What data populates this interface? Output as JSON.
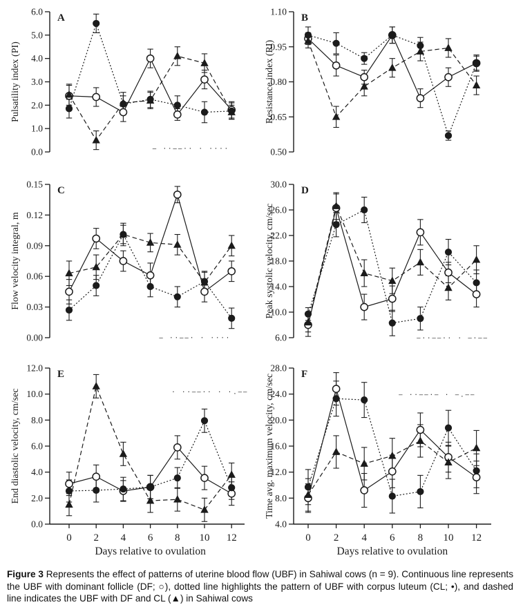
{
  "colors": {
    "ink": "#1b1b1b",
    "background": "#ffffff"
  },
  "figure": {
    "caption_label": "Figure 3",
    "caption_text": " Represents the effect of patterns of uterine blood flow (UBF) in Sahiwal cows (n = 9). Continuous line represents the UBF with dominant follicle (DF; ○), dotted line highlights the pattern of UBF with corpus luteum (CL; •), and dashed line indicates the UBF with DF and CL (▲) in Sahiwal cows"
  },
  "x_axis": {
    "title": "Days relative to ovulation",
    "ticks": [
      0,
      2,
      4,
      6,
      8,
      10,
      12
    ]
  },
  "series_key": [
    {
      "name": "DF",
      "symbol": "○",
      "marker": "open-circle",
      "line": "continuous",
      "meaning": "dominant follicle"
    },
    {
      "name": "CL",
      "symbol": "•",
      "marker": "filled-circle",
      "line": "dotted",
      "meaning": "corpus luteum"
    },
    {
      "name": "DF and CL",
      "symbol": "▲",
      "marker": "filled-triangle",
      "line": "dashed",
      "meaning": "DF and CL"
    }
  ],
  "chart_data": [
    {
      "type": "line",
      "panel": "A",
      "ylabel": "Pulsatility index (PI)",
      "ylim": [
        0.0,
        6.0
      ],
      "ytick_step": 1.0,
      "ydecimals": 1,
      "x": [
        0,
        2,
        4,
        6,
        8,
        10,
        12
      ],
      "series": [
        {
          "name": "DF",
          "values": [
            2.4,
            2.35,
            1.7,
            4.0,
            1.6,
            3.1,
            1.8
          ],
          "err": [
            0.45,
            0.4,
            0.4,
            0.4,
            0.25,
            0.4,
            0.35
          ]
        },
        {
          "name": "CL",
          "values": [
            1.85,
            5.5,
            2.05,
            2.25,
            2.0,
            1.7,
            1.75
          ],
          "err": [
            0.4,
            0.4,
            0.35,
            0.35,
            0.4,
            0.45,
            0.35
          ]
        },
        {
          "name": "DF and CL",
          "values": [
            2.45,
            0.5,
            2.1,
            2.2,
            4.1,
            3.8,
            1.7
          ],
          "err": [
            0.45,
            0.4,
            0.45,
            0.35,
            0.4,
            0.4,
            0.3
          ]
        }
      ],
      "clipped_text_artifact": {
        "text": "– ··––·· ·    ····",
        "day": 9.0,
        "value": 0.06
      }
    },
    {
      "type": "line",
      "panel": "B",
      "ylabel": "Resistance index (RI)",
      "ylim": [
        0.5,
        1.1
      ],
      "ytick_step": 0.15,
      "ydecimals": 2,
      "x": [
        0,
        2,
        4,
        6,
        8,
        10,
        12
      ],
      "series": [
        {
          "name": "DF",
          "values": [
            0.985,
            0.87,
            0.82,
            1.0,
            0.73,
            0.82,
            0.88
          ],
          "err": [
            0.025,
            0.045,
            0.03,
            0.035,
            0.04,
            0.04,
            0.03
          ]
        },
        {
          "name": "CL",
          "values": [
            1.0,
            0.965,
            0.9,
            1.0,
            0.955,
            0.57,
            0.88
          ],
          "err": [
            0.035,
            0.045,
            0.025,
            0.035,
            0.035,
            0.02,
            0.035
          ]
        },
        {
          "name": "DF and CL",
          "values": [
            0.975,
            0.65,
            0.78,
            0.86,
            0.93,
            0.945,
            0.785
          ],
          "err": [
            0.03,
            0.045,
            0.04,
            0.04,
            0.04,
            0.04,
            0.04
          ]
        }
      ]
    },
    {
      "type": "line",
      "panel": "C",
      "ylabel": "Flow velocity integral, m",
      "ylim": [
        0.0,
        0.15
      ],
      "ytick_step": 0.03,
      "ydecimals": 2,
      "x": [
        0,
        2,
        4,
        6,
        8,
        10,
        12
      ],
      "series": [
        {
          "name": "DF",
          "values": [
            0.045,
            0.097,
            0.075,
            0.061,
            0.14,
            0.045,
            0.065
          ],
          "err": [
            0.012,
            0.01,
            0.01,
            0.012,
            0.008,
            0.01,
            0.01
          ]
        },
        {
          "name": "CL",
          "values": [
            0.027,
            0.051,
            0.101,
            0.05,
            0.04,
            0.055,
            0.019
          ],
          "err": [
            0.01,
            0.01,
            0.009,
            0.01,
            0.01,
            0.01,
            0.01
          ]
        },
        {
          "name": "DF and CL",
          "values": [
            0.063,
            0.069,
            0.101,
            0.093,
            0.091,
            0.054,
            0.09
          ],
          "err": [
            0.012,
            0.012,
            0.011,
            0.009,
            0.01,
            0.01,
            0.01
          ]
        }
      ],
      "clipped_text_artifact": {
        "text": "– ··––·  ·   ····",
        "day": 9.3,
        "value": -0.002
      }
    },
    {
      "type": "line",
      "panel": "D",
      "ylabel": "Peak systolic velocity, cm/sec",
      "ylim": [
        6.0,
        30.0
      ],
      "ytick_step": 4.0,
      "ydecimals": 1,
      "x": [
        0,
        2,
        4,
        6,
        8,
        10,
        12
      ],
      "series": [
        {
          "name": "DF",
          "values": [
            8.0,
            26.3,
            10.8,
            12.1,
            22.5,
            16.2,
            12.8
          ],
          "err": [
            1.8,
            2.2,
            2.0,
            2.0,
            2.0,
            1.6,
            2.0
          ]
        },
        {
          "name": "CL",
          "values": [
            9.7,
            23.7,
            26.0,
            8.3,
            9.0,
            19.4,
            14.6
          ],
          "err": [
            1.0,
            1.9,
            2.0,
            2.0,
            1.8,
            2.0,
            2.0
          ]
        },
        {
          "name": "DF and CL",
          "values": [
            8.4,
            26.6,
            16.1,
            14.9,
            17.8,
            13.8,
            18.2
          ],
          "err": [
            1.5,
            2.1,
            2.1,
            2.0,
            2.0,
            1.9,
            2.2
          ]
        }
      ],
      "clipped_text_artifact": {
        "text": "–··––·· ·   –·––",
        "day": 10.3,
        "value": 5.6
      }
    },
    {
      "type": "line",
      "panel": "E",
      "ylabel": "End diastolic velocity, cm/sec",
      "ylim": [
        0.0,
        12.0
      ],
      "ytick_step": 2.0,
      "ydecimals": 1,
      "x": [
        0,
        2,
        4,
        6,
        8,
        10,
        12
      ],
      "series": [
        {
          "name": "DF",
          "values": [
            3.1,
            3.65,
            2.55,
            2.85,
            5.9,
            3.55,
            2.35
          ],
          "err": [
            0.9,
            0.9,
            0.8,
            0.9,
            0.9,
            0.9,
            0.9
          ]
        },
        {
          "name": "CL",
          "values": [
            2.55,
            2.6,
            2.7,
            2.85,
            3.55,
            7.95,
            2.8
          ],
          "err": [
            0.85,
            0.9,
            0.9,
            0.9,
            0.8,
            0.9,
            0.9
          ]
        },
        {
          "name": "DF and CL",
          "values": [
            1.5,
            10.6,
            5.4,
            1.8,
            1.9,
            1.1,
            3.8
          ],
          "err": [
            0.85,
            0.9,
            0.9,
            0.9,
            0.9,
            0.9,
            0.9
          ]
        }
      ],
      "clipped_text_artifact": {
        "text": "· ··––·· ·    ·.––",
        "day": 10.4,
        "value": 10.0
      }
    },
    {
      "type": "line",
      "panel": "F",
      "ylabel": "Time avg. maximum velocity, cm/sec",
      "ylim": [
        4.0,
        28.0
      ],
      "ytick_step": 4.0,
      "ydecimals": 1,
      "x": [
        0,
        2,
        4,
        6,
        8,
        10,
        12
      ],
      "series": [
        {
          "name": "DF",
          "values": [
            8.0,
            24.8,
            9.2,
            12.1,
            18.5,
            14.3,
            11.2
          ],
          "err": [
            2.2,
            2.5,
            2.6,
            2.5,
            2.6,
            2.3,
            2.5
          ]
        },
        {
          "name": "CL",
          "values": [
            9.7,
            23.3,
            23.1,
            8.3,
            9.0,
            18.8,
            12.2
          ],
          "err": [
            2.7,
            2.7,
            2.7,
            2.6,
            2.5,
            2.7,
            2.6
          ]
        },
        {
          "name": "DF and CL",
          "values": [
            8.5,
            15.1,
            13.3,
            14.5,
            16.8,
            13.5,
            15.7
          ],
          "err": [
            2.5,
            2.5,
            2.5,
            2.7,
            2.5,
            2.5,
            2.7
          ]
        }
      ],
      "clipped_text_artifact": {
        "text": "– ··––·– ·    –.––",
        "day": 9.2,
        "value": 23.6
      }
    }
  ]
}
